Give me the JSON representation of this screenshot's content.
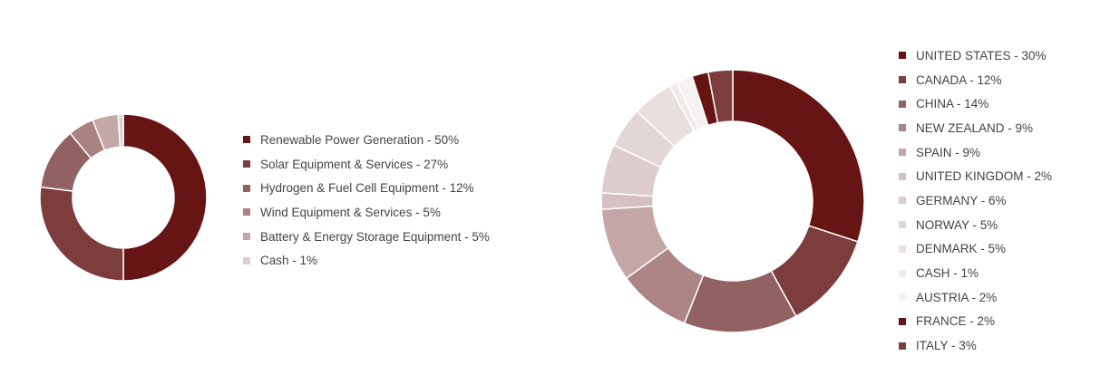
{
  "chart_data": [
    {
      "type": "donut",
      "categories": [
        "Renewable Power Generation",
        "Solar Equipment & Services",
        "Hydrogen & Fuel Cell Equipment",
        "Wind Equipment & Services",
        "Battery & Energy Storage Equipment",
        "Cash"
      ],
      "values": [
        50,
        27,
        12,
        5,
        5,
        1
      ],
      "labels": [
        "Renewable Power Generation - 50%",
        "Solar Equipment & Services - 27%",
        "Hydrogen & Fuel Cell Equipment - 12%",
        "Wind Equipment & Services - 5%",
        "Battery & Energy Storage Equipment - 5%",
        "Cash - 1%"
      ],
      "colors": [
        "#671414",
        "#7d3d3d",
        "#926161",
        "#a98282",
        "#c4a8a8",
        "#e0cece"
      ],
      "legend": "right"
    },
    {
      "type": "donut",
      "categories": [
        "UNITED STATES",
        "CANADA",
        "CHINA",
        "NEW ZEALAND",
        "SPAIN",
        "UNITED KINGDOM",
        "GERMANY",
        "NORWAY",
        "DENMARK",
        "CASH",
        "AUSTRIA",
        "FRANCE",
        "ITALY"
      ],
      "values": [
        30,
        12,
        14,
        9,
        9,
        2,
        6,
        5,
        5,
        1,
        2,
        2,
        3
      ],
      "labels": [
        "UNITED STATES - 30%",
        "CANADA - 12%",
        "CHINA - 14%",
        "NEW ZEALAND - 9%",
        "SPAIN - 9%",
        "UNITED KINGDOM - 2%",
        "GERMANY - 6%",
        "NORWAY - 5%",
        "DENMARK - 5%",
        "CASH - 1%",
        "AUSTRIA - 2%",
        "FRANCE - 2%",
        "ITALY - 3%"
      ],
      "colors": [
        "#671414",
        "#7d3d3d",
        "#926161",
        "#ad8585",
        "#c4a6a6",
        "#d5c1c1",
        "#dccccc",
        "#e3d6d6",
        "#e9dfdf",
        "#f1eaea",
        "#f6f2f2",
        "#671414",
        "#7d3d3d"
      ],
      "legend": "right"
    }
  ]
}
